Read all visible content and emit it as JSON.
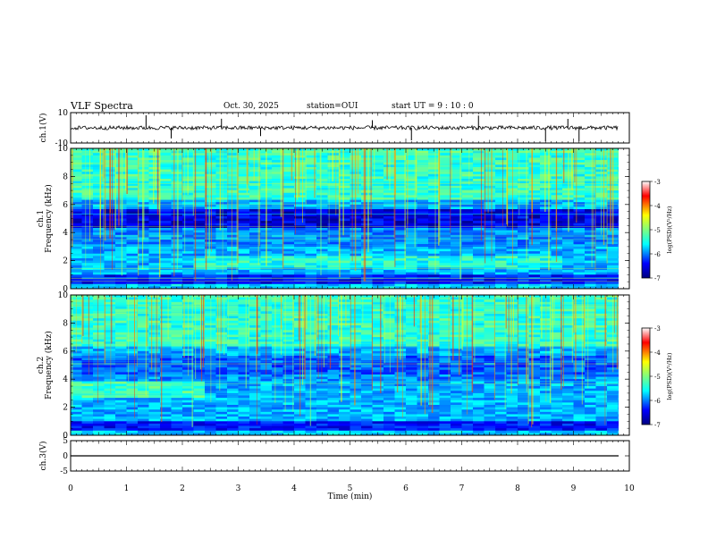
{
  "header": {
    "title": "VLF Spectra",
    "date": "Oct. 30, 2025",
    "station": "station=OUI",
    "start": "start  UT =   9 : 10 : 0"
  },
  "chart_data": [
    {
      "type": "line",
      "name": "ch.1 waveform",
      "ylabel": "ch.1(V)",
      "ylim": [
        -10,
        10
      ],
      "yticks": [
        "10",
        "-10"
      ],
      "xlim": [
        0,
        10
      ],
      "baseline": 0,
      "spike_minutes": [
        1.35,
        1.8,
        2.7,
        3.4,
        5.4,
        6.1,
        7.3,
        8.5,
        8.9,
        9.1
      ]
    },
    {
      "type": "heatmap",
      "name": "ch.1 spectrogram",
      "ylabel": "ch.1\nFrequency (kHz)",
      "ylim": [
        0,
        10
      ],
      "yticks": [
        "0",
        "2",
        "4",
        "6",
        "8",
        "10"
      ],
      "xlim": [
        0,
        10
      ],
      "colorbar": {
        "label": "log(PSD)(V²/Hz)",
        "range": [
          -7,
          -3
        ],
        "ticks": [
          "-3",
          "-4",
          "-5",
          "-6",
          "-7"
        ]
      }
    },
    {
      "type": "heatmap",
      "name": "ch.2 spectrogram",
      "ylabel": "ch.2\nFrequency (kHz)",
      "ylim": [
        0,
        10
      ],
      "yticks": [
        "0",
        "2",
        "4",
        "6",
        "8",
        "10"
      ],
      "xlim": [
        0,
        10
      ],
      "colorbar": {
        "label": "log(PSD)(V²/Hz)",
        "range": [
          -7,
          -3
        ],
        "ticks": [
          "-3",
          "-4",
          "-5",
          "-6",
          "-7"
        ]
      }
    },
    {
      "type": "line",
      "name": "ch.3 waveform",
      "ylabel": "ch.3(V)",
      "ylim": [
        -5,
        5
      ],
      "yticks": [
        "5",
        "0",
        "-5"
      ],
      "xlim": [
        0,
        10
      ],
      "baseline": 0
    }
  ],
  "x_axis": {
    "label": "Time  (min)",
    "ticks": [
      "0",
      "1",
      "2",
      "3",
      "4",
      "5",
      "6",
      "7",
      "8",
      "9",
      "10"
    ]
  }
}
